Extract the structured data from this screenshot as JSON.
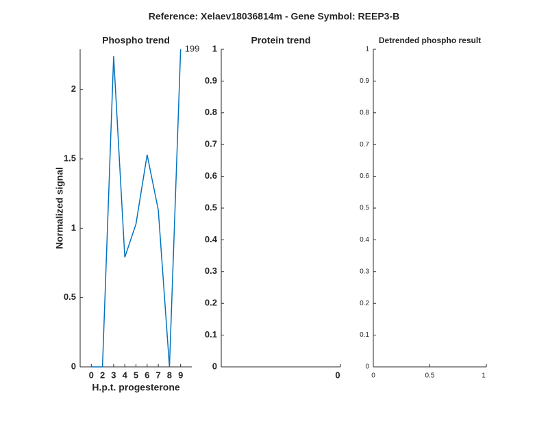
{
  "title": "Reference:  Xelaev18036814m - Gene Symbol:  REEP3-B",
  "chart_data": [
    {
      "type": "line",
      "title": "Phospho trend",
      "xlabel": "H.p.t. progesterone",
      "ylabel": "Normalized signal",
      "categories": [
        "0",
        "2",
        "3",
        "4",
        "5",
        "6",
        "7",
        "8",
        "9"
      ],
      "series": [
        {
          "color": "#0072bd",
          "values": [
            0,
            0,
            2.24,
            0.79,
            1.03,
            1.53,
            1.13,
            0,
            2.29
          ]
        }
      ],
      "ylim": [
        0,
        2.29
      ],
      "yticks": [
        0,
        0.5,
        1,
        1.5,
        2
      ],
      "annotation": "199"
    },
    {
      "type": "line",
      "title": "Protein trend",
      "xlim": [
        -1,
        0
      ],
      "xticks": [
        0
      ],
      "ylim": [
        0,
        1
      ],
      "yticks": [
        0,
        0.1,
        0.2,
        0.3,
        0.4,
        0.5,
        0.6,
        0.7,
        0.8,
        0.9,
        1
      ]
    },
    {
      "type": "line",
      "title": "Detrended phospho result",
      "xlim": [
        0,
        1
      ],
      "xticks": [
        0,
        0.5,
        1
      ],
      "ylim": [
        0,
        1
      ],
      "yticks": [
        0,
        0.1,
        0.2,
        0.3,
        0.4,
        0.5,
        0.6,
        0.7,
        0.8,
        0.9,
        1
      ]
    }
  ]
}
